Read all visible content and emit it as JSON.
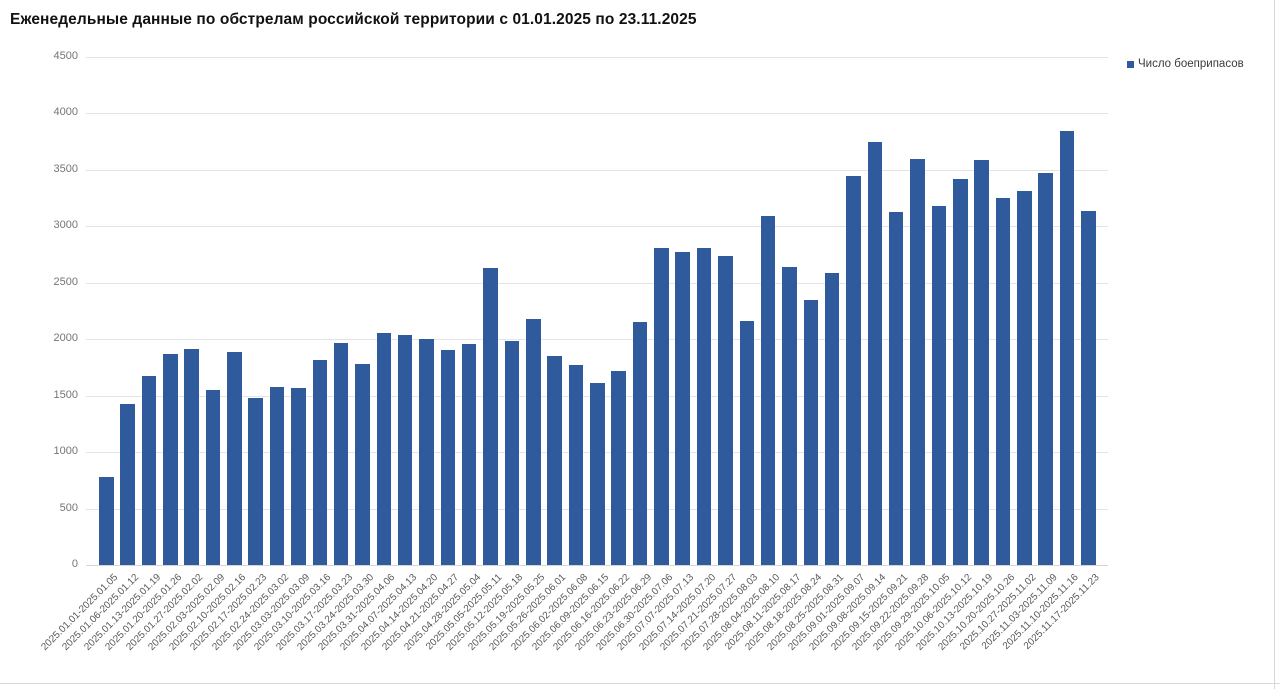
{
  "title": "Еженедельные данные по обстрелам российской территории с 01.01.2025 по 23.11.2025",
  "legend": {
    "label": "Число боеприпасов"
  },
  "colors": {
    "bar": "#2F5B9D",
    "grid": "#E4E4E4",
    "baseline": "#D4D4D4",
    "y_axis_text": "#757575",
    "x_axis_text": "#595959",
    "title_text": "#111111",
    "legend_text": "#3B3B3B",
    "frame": "#D8D8D8"
  },
  "chart_data": {
    "type": "bar",
    "title": "Еженедельные данные по обстрелам российской территории с 01.01.2025 по 23.11.2025",
    "xlabel": "",
    "ylabel": "",
    "ylim": [
      0,
      4500
    ],
    "yticks": [
      0,
      500,
      1000,
      1500,
      2000,
      2500,
      3000,
      3500,
      4000,
      4500
    ],
    "grid": true,
    "legend_position": "top-right",
    "series": [
      {
        "name": "Число боеприпасов",
        "values": [
          780,
          1430,
          1670,
          1865,
          1915,
          1550,
          1885,
          1475,
          1575,
          1565,
          1820,
          1970,
          1780,
          2055,
          2040,
          2000,
          1905,
          1960,
          2630,
          1985,
          2180,
          1855,
          1775,
          1615,
          1720,
          2150,
          2810,
          2770,
          2805,
          2740,
          2160,
          3090,
          2640,
          2350,
          2590,
          3445,
          3745,
          3130,
          3595,
          3180,
          3420,
          3590,
          3250,
          3315,
          3475,
          3845,
          3135
        ]
      }
    ],
    "categories": [
      "2025.01.01-2025.01.05",
      "2025.01.06-2025.01.12",
      "2025.01.13-2025.01.19",
      "2025.01.20-2025.01.26",
      "2025.01.27-2025.02.02",
      "2025.02.03-2025.02.09",
      "2025.02.10-2025.02.16",
      "2025.02.17-2025.02.23",
      "2025.02.24-2025.03.02",
      "2025.03.03-2025.03.09",
      "2025.03.10-2025.03.16",
      "2025.03.17-2025.03.23",
      "2025.03.24-2025.03.30",
      "2025.03.31-2025.04.06",
      "2025.04.07-2025.04.13",
      "2025.04.14-2025.04.20",
      "2025.04.21-2025.04.27",
      "2025.04.28-2025.05.04",
      "2025.05.05-2025.05.11",
      "2025.05.12-2025.05.18",
      "2025.05.19-2025.05.25",
      "2025.05.26-2025.06.01",
      "2025.06.02-2025.06.08",
      "2025.06.09-2025.06.15",
      "2025.06.16-2025.06.22",
      "2025.06.23-2025.06.29",
      "2025.06.30-2025.07.06",
      "2025.07.07-2025.07.13",
      "2025.07.14-2025.07.20",
      "2025.07.21-2025.07.27",
      "2025.07.28-2025.08.03",
      "2025.08.04-2025.08.10",
      "2025.08.11-2025.08.17",
      "2025.08.18-2025.08.24",
      "2025.08.25-2025.08.31",
      "2025.09.01-2025.09.07",
      "2025.09.08-2025.09.14",
      "2025.09.15-2025.09.21",
      "2025.09.22-2025.09.28",
      "2025.09.29-2025.10.05",
      "2025.10.06-2025.10.12",
      "2025.10.13-2025.10.19",
      "2025.10.20-2025.10.26",
      "2025.10.27-2025.11.02",
      "2025.11.03-2025.11.09",
      "2025.11.10-2025.11.16",
      "2025.11.17-2025.11.23"
    ]
  }
}
